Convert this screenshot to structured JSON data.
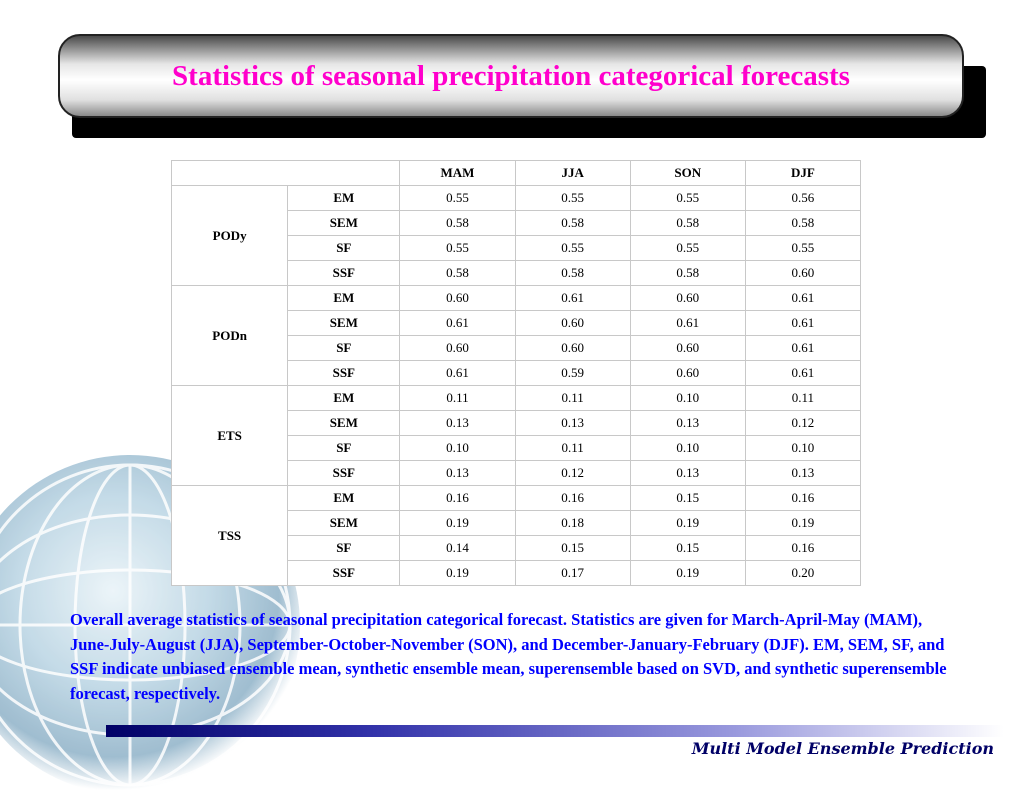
{
  "slide": {
    "title": "Statistics of seasonal precipitation categorical forecasts",
    "caption": "Overall average statistics of seasonal precipitation categorical forecast. Statistics are given for March-April-May (MAM), June-July-August (JJA), September-October-November (SON), and December-January-February (DJF). EM, SEM, SF, and SSF indicate unbiased ensemble mean, synthetic ensemble mean, superensemble based on SVD, and synthetic superensemble forecast, respectively.",
    "footer": "Multi Model Ensemble Prediction"
  },
  "colors": {
    "title": "#ff00cc",
    "caption": "#0000ff",
    "footer": "#000066"
  },
  "table": {
    "corner": "",
    "columns": [
      "MAM",
      "JJA",
      "SON",
      "DJF"
    ],
    "groups": [
      {
        "metric": "PODy",
        "rows": [
          {
            "method": "EM",
            "values": [
              "0.55",
              "0.55",
              "0.55",
              "0.56"
            ]
          },
          {
            "method": "SEM",
            "values": [
              "0.58",
              "0.58",
              "0.58",
              "0.58"
            ]
          },
          {
            "method": "SF",
            "values": [
              "0.55",
              "0.55",
              "0.55",
              "0.55"
            ]
          },
          {
            "method": "SSF",
            "values": [
              "0.58",
              "0.58",
              "0.58",
              "0.60"
            ]
          }
        ]
      },
      {
        "metric": "PODn",
        "rows": [
          {
            "method": "EM",
            "values": [
              "0.60",
              "0.61",
              "0.60",
              "0.61"
            ]
          },
          {
            "method": "SEM",
            "values": [
              "0.61",
              "0.60",
              "0.61",
              "0.61"
            ]
          },
          {
            "method": "SF",
            "values": [
              "0.60",
              "0.60",
              "0.60",
              "0.61"
            ]
          },
          {
            "method": "SSF",
            "values": [
              "0.61",
              "0.59",
              "0.60",
              "0.61"
            ]
          }
        ]
      },
      {
        "metric": "ETS",
        "rows": [
          {
            "method": "EM",
            "values": [
              "0.11",
              "0.11",
              "0.10",
              "0.11"
            ]
          },
          {
            "method": "SEM",
            "values": [
              "0.13",
              "0.13",
              "0.13",
              "0.12"
            ]
          },
          {
            "method": "SF",
            "values": [
              "0.10",
              "0.11",
              "0.10",
              "0.10"
            ]
          },
          {
            "method": "SSF",
            "values": [
              "0.13",
              "0.12",
              "0.13",
              "0.13"
            ]
          }
        ]
      },
      {
        "metric": "TSS",
        "rows": [
          {
            "method": "EM",
            "values": [
              "0.16",
              "0.16",
              "0.15",
              "0.16"
            ]
          },
          {
            "method": "SEM",
            "values": [
              "0.19",
              "0.18",
              "0.19",
              "0.19"
            ]
          },
          {
            "method": "SF",
            "values": [
              "0.14",
              "0.15",
              "0.15",
              "0.16"
            ]
          },
          {
            "method": "SSF",
            "values": [
              "0.19",
              "0.17",
              "0.19",
              "0.20"
            ]
          }
        ]
      }
    ]
  }
}
